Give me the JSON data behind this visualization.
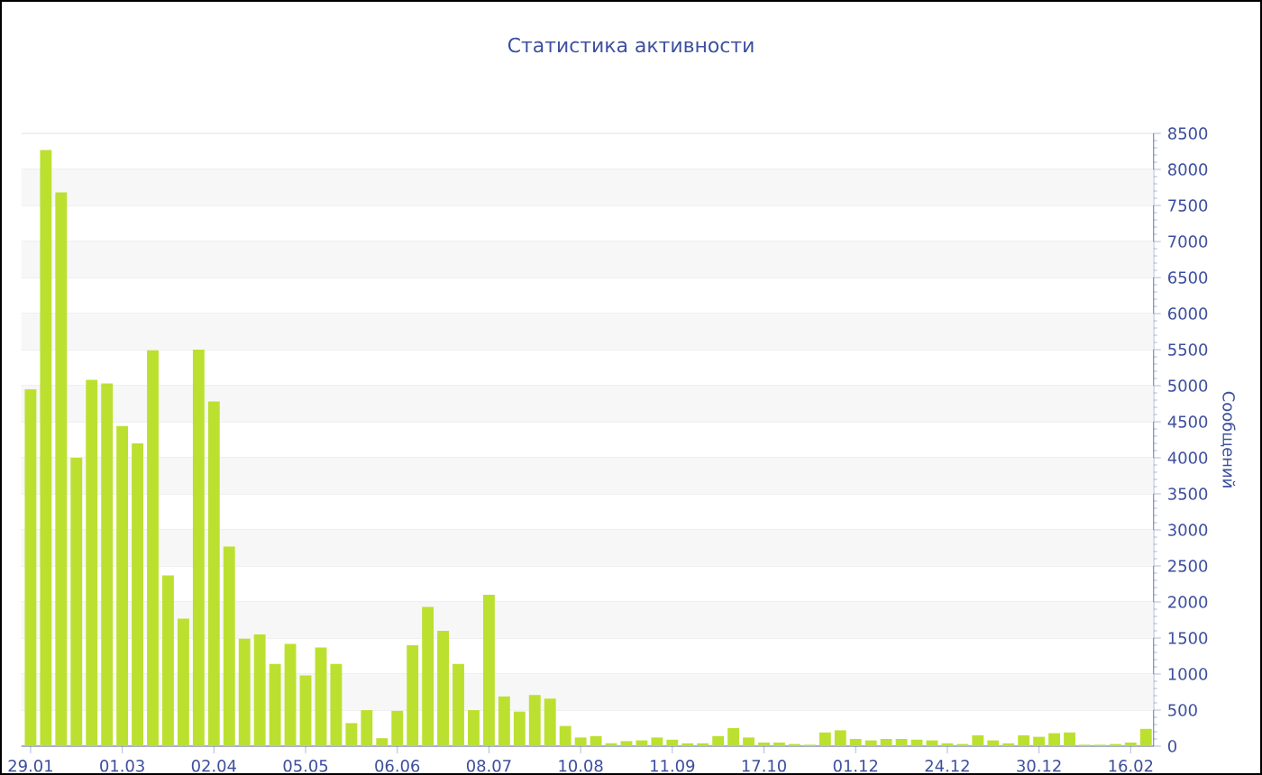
{
  "chart_data": {
    "type": "bar",
    "title": "Статистика активности",
    "ylabel": "Сообщений",
    "categories": [
      "29.01",
      null,
      null,
      null,
      null,
      null,
      "01.03",
      null,
      null,
      null,
      null,
      null,
      "02.04",
      null,
      null,
      null,
      null,
      null,
      "05.05",
      null,
      null,
      null,
      null,
      null,
      "06.06",
      null,
      null,
      null,
      null,
      null,
      "08.07",
      null,
      null,
      null,
      null,
      null,
      "10.08",
      null,
      null,
      null,
      null,
      null,
      "11.09",
      null,
      null,
      null,
      null,
      null,
      "17.10",
      null,
      null,
      null,
      null,
      null,
      "01.12",
      null,
      null,
      null,
      null,
      null,
      "24.12",
      null,
      null,
      null,
      null,
      null,
      "30.12",
      null,
      null,
      null,
      null,
      null,
      "16.02",
      null
    ],
    "values": [
      4950,
      8270,
      7680,
      4000,
      5080,
      5030,
      4440,
      4200,
      5490,
      2370,
      1770,
      5500,
      4780,
      2770,
      1490,
      1550,
      1140,
      1420,
      980,
      1370,
      1140,
      320,
      500,
      110,
      490,
      1400,
      1930,
      1600,
      1140,
      500,
      2100,
      690,
      480,
      710,
      660,
      280,
      120,
      140,
      40,
      70,
      80,
      120,
      90,
      40,
      40,
      140,
      250,
      120,
      50,
      50,
      30,
      20,
      190,
      220,
      100,
      80,
      100,
      100,
      90,
      80,
      40,
      30,
      150,
      80,
      40,
      150,
      130,
      180,
      190,
      20,
      20,
      30,
      50,
      240
    ],
    "color": "#bce030",
    "ylim": [
      0,
      8500
    ],
    "yticks": [
      0,
      500,
      1000,
      1500,
      2000,
      2500,
      3000,
      3500,
      4000,
      4500,
      5000,
      5500,
      6000,
      6500,
      7000,
      7500,
      8000,
      8500
    ],
    "grid": "y"
  }
}
